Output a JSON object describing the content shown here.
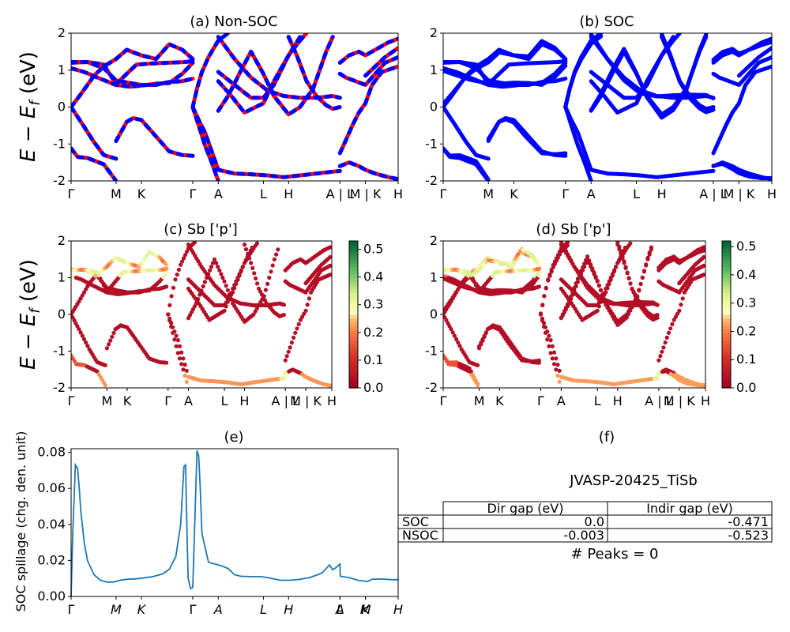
{
  "chart_data": [
    {
      "id": "a",
      "type": "line",
      "title": "(a) Non-SOC",
      "ylabel": "E − E_f (eV)",
      "ylim": [
        -2,
        2
      ],
      "yticks": [
        -2,
        -1,
        0,
        1,
        2
      ],
      "xticks": [
        {
          "label": "Γ",
          "k": 0.0
        },
        {
          "label": "M",
          "k": 0.1375
        },
        {
          "label": "K",
          "k": 0.215
        },
        {
          "label": "Γ",
          "k": 0.372
        },
        {
          "label": "A",
          "k": 0.45
        },
        {
          "label": "L",
          "k": 0.588
        },
        {
          "label": "H",
          "k": 0.665
        },
        {
          "label": "A | L",
          "k": 0.822
        },
        {
          "label": "M | K",
          "k": 0.9
        },
        {
          "label": "H",
          "k": 1.0
        }
      ],
      "series": [
        {
          "color": "#ff0000",
          "style": "solid",
          "bands": "non_soc"
        },
        {
          "color": "#0000ff",
          "style": "dashed",
          "bands": "non_soc"
        }
      ]
    },
    {
      "id": "b",
      "type": "line",
      "title": "(b) SOC",
      "ylim": [
        -2,
        2
      ],
      "yticks": [
        -2,
        -1,
        0,
        1,
        2
      ],
      "xticks": [
        {
          "label": "Γ",
          "k": 0.0
        },
        {
          "label": "M",
          "k": 0.1375
        },
        {
          "label": "K",
          "k": 0.215
        },
        {
          "label": "Γ",
          "k": 0.372
        },
        {
          "label": "A",
          "k": 0.45
        },
        {
          "label": "L",
          "k": 0.588
        },
        {
          "label": "H",
          "k": 0.665
        },
        {
          "label": "A | L",
          "k": 0.822
        },
        {
          "label": "M | K",
          "k": 0.9
        },
        {
          "label": "H",
          "k": 1.0
        }
      ],
      "series": [
        {
          "color": "#0000ff",
          "style": "solid",
          "bands": "soc"
        }
      ]
    },
    {
      "id": "c",
      "type": "scatter",
      "title": "(c)  Sb ['p']",
      "ylabel": "E − E_f (eV)",
      "ylim": [
        -2,
        2
      ],
      "yticks": [
        -2,
        -1,
        0,
        1,
        2
      ],
      "colorbar": {
        "min": 0.0,
        "max": 0.53,
        "ticks": [
          "0.0",
          "0.1",
          "0.2",
          "0.3",
          "0.4",
          "0.5"
        ],
        "cmap": "RdYlGn"
      },
      "xticks": [
        {
          "label": "Γ",
          "k": 0.0
        },
        {
          "label": "M",
          "k": 0.1375
        },
        {
          "label": "K",
          "k": 0.215
        },
        {
          "label": "Γ",
          "k": 0.372
        },
        {
          "label": "A",
          "k": 0.45
        },
        {
          "label": "L",
          "k": 0.588
        },
        {
          "label": "H",
          "k": 0.665
        },
        {
          "label": "A | L",
          "k": 0.822
        },
        {
          "label": "M | K",
          "k": 0.9
        },
        {
          "label": "H",
          "k": 1.0
        }
      ],
      "bands": "non_soc"
    },
    {
      "id": "d",
      "type": "scatter",
      "title": "(d) Sb ['p']",
      "ylim": [
        -2,
        2
      ],
      "yticks": [
        -2,
        -1,
        0,
        1,
        2
      ],
      "colorbar": {
        "min": 0.0,
        "max": 0.52,
        "ticks": [
          "0.0",
          "0.1",
          "0.2",
          "0.3",
          "0.4",
          "0.5"
        ],
        "cmap": "RdYlGn"
      },
      "xticks": [
        {
          "label": "Γ",
          "k": 0.0
        },
        {
          "label": "M",
          "k": 0.1375
        },
        {
          "label": "K",
          "k": 0.215
        },
        {
          "label": "Γ",
          "k": 0.372
        },
        {
          "label": "A",
          "k": 0.45
        },
        {
          "label": "L",
          "k": 0.588
        },
        {
          "label": "H",
          "k": 0.665
        },
        {
          "label": "A | L",
          "k": 0.822
        },
        {
          "label": "M | K",
          "k": 0.9
        },
        {
          "label": "H",
          "k": 1.0
        }
      ],
      "bands": "soc"
    },
    {
      "id": "e",
      "type": "line",
      "title": "(e)",
      "ylabel": "SOC spillage (chg. den. unit)",
      "ylim": [
        0.0,
        0.082
      ],
      "yticks": [
        "0.00",
        "0.02",
        "0.04",
        "0.06",
        "0.08"
      ],
      "xticks": [
        {
          "label": "Γ",
          "k": 0.0
        },
        {
          "label": "M",
          "k": 0.1375
        },
        {
          "label": "K",
          "k": 0.215
        },
        {
          "label": "Γ",
          "k": 0.372
        },
        {
          "label": "A",
          "k": 0.45
        },
        {
          "label": "L",
          "k": 0.588
        },
        {
          "label": "H",
          "k": 0.665
        },
        {
          "label": "A",
          "k": 0.822
        },
        {
          "label": "L",
          "k": 0.822
        },
        {
          "label": "M",
          "k": 0.9
        },
        {
          "label": "K",
          "k": 0.9
        },
        {
          "label": "H",
          "k": 1.0
        }
      ],
      "series": [
        {
          "color": "#1f77b4",
          "x": [
            0.0,
            0.005,
            0.013,
            0.02,
            0.025,
            0.03,
            0.04,
            0.05,
            0.07,
            0.09,
            0.11,
            0.13,
            0.15,
            0.17,
            0.2,
            0.22,
            0.25,
            0.28,
            0.3,
            0.32,
            0.335,
            0.345,
            0.35,
            0.355,
            0.358,
            0.365,
            0.368,
            0.372,
            0.385,
            0.39,
            0.395,
            0.4,
            0.42,
            0.44,
            0.46,
            0.48,
            0.5,
            0.52,
            0.55,
            0.58,
            0.6,
            0.62,
            0.64,
            0.67,
            0.7,
            0.73,
            0.76,
            0.77,
            0.79,
            0.8,
            0.81,
            0.822,
            0.823,
            0.85,
            0.88,
            0.9,
            0.905,
            0.92,
            0.95,
            0.98,
            1.0
          ],
          "y": [
            0.0,
            0.035,
            0.073,
            0.071,
            0.06,
            0.047,
            0.03,
            0.02,
            0.012,
            0.009,
            0.008,
            0.008,
            0.009,
            0.0095,
            0.0098,
            0.0102,
            0.011,
            0.0125,
            0.015,
            0.022,
            0.04,
            0.072,
            0.073,
            0.03,
            0.01,
            0.0045,
            0.0045,
            0.005,
            0.081,
            0.078,
            0.06,
            0.035,
            0.019,
            0.018,
            0.017,
            0.0155,
            0.012,
            0.0112,
            0.011,
            0.011,
            0.0105,
            0.0098,
            0.009,
            0.009,
            0.0095,
            0.0105,
            0.0125,
            0.0135,
            0.0175,
            0.0148,
            0.016,
            0.018,
            0.0112,
            0.0105,
            0.0088,
            0.0085,
            0.0082,
            0.0095,
            0.0097,
            0.0093,
            0.0093
          ]
        }
      ]
    }
  ],
  "panel_f": {
    "title": "(f)",
    "material": "JVASP-20425_TiSb",
    "table": {
      "headers": [
        "Dir gap (eV)",
        "Indir gap (eV)"
      ],
      "rows": [
        {
          "label": "SOC",
          "dir": "0.0",
          "indir": "-0.471"
        },
        {
          "label": "NSOC",
          "dir": "-0.003",
          "indir": "-0.523"
        }
      ]
    },
    "peaks": "# Peaks = 0"
  }
}
